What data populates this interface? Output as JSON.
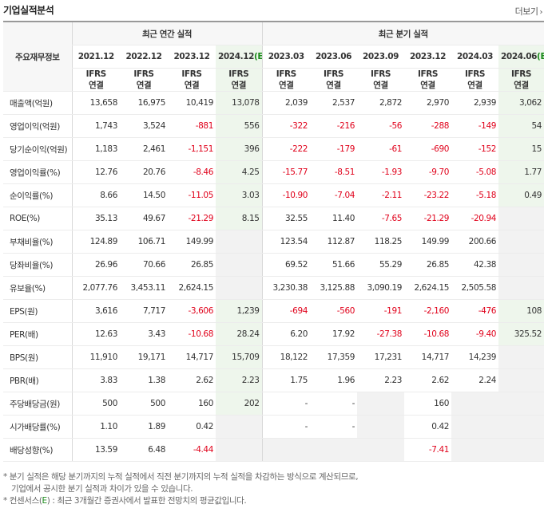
{
  "header": {
    "title": "기업실적분석",
    "more_label": "더보기"
  },
  "table": {
    "label_header": "주요재무정보",
    "annual_header": "최근 연간 실적",
    "quarter_header": "최근 분기 실적",
    "annual_years": [
      "2021.12",
      "2022.12",
      "2023.12",
      "2024.12"
    ],
    "annual_est_mark": "(E)",
    "quarter_periods": [
      "2023.03",
      "2023.06",
      "2023.09",
      "2023.12",
      "2024.03",
      "2024.06"
    ],
    "quarter_est_mark": "(E)",
    "ifrs_line1": "IFRS",
    "ifrs_line2": "연결",
    "rows": [
      {
        "label": "매출액(억원)",
        "values": [
          "13,658",
          "16,975",
          "10,419",
          "13,078",
          "2,039",
          "2,537",
          "2,872",
          "2,970",
          "2,939",
          "3,062"
        ]
      },
      {
        "label": "영업이익(억원)",
        "values": [
          "1,743",
          "3,524",
          "-881",
          "556",
          "-322",
          "-216",
          "-56",
          "-288",
          "-149",
          "54"
        ]
      },
      {
        "label": "당기순이익(억원)",
        "values": [
          "1,183",
          "2,461",
          "-1,151",
          "396",
          "-222",
          "-179",
          "-61",
          "-690",
          "-152",
          "15"
        ]
      },
      {
        "label": "영업이익률(%)",
        "values": [
          "12.76",
          "20.76",
          "-8.46",
          "4.25",
          "-15.77",
          "-8.51",
          "-1.93",
          "-9.70",
          "-5.08",
          "1.77"
        ]
      },
      {
        "label": "순이익률(%)",
        "values": [
          "8.66",
          "14.50",
          "-11.05",
          "3.03",
          "-10.90",
          "-7.04",
          "-2.11",
          "-23.22",
          "-5.18",
          "0.49"
        ]
      },
      {
        "label": "ROE(%)",
        "values": [
          "35.13",
          "49.67",
          "-21.29",
          "8.15",
          "32.55",
          "11.40",
          "-7.65",
          "-21.29",
          "-20.94",
          ""
        ]
      },
      {
        "label": "부채비율(%)",
        "values": [
          "124.89",
          "106.71",
          "149.99",
          "",
          "123.54",
          "112.87",
          "118.25",
          "149.99",
          "200.66",
          ""
        ]
      },
      {
        "label": "당좌비율(%)",
        "values": [
          "26.96",
          "70.66",
          "26.85",
          "",
          "69.52",
          "51.66",
          "55.29",
          "26.85",
          "42.38",
          ""
        ]
      },
      {
        "label": "유보율(%)",
        "values": [
          "2,077.76",
          "3,453.11",
          "2,624.15",
          "",
          "3,230.38",
          "3,125.88",
          "3,090.19",
          "2,624.15",
          "2,505.58",
          ""
        ]
      },
      {
        "label": "EPS(원)",
        "values": [
          "3,616",
          "7,717",
          "-3,606",
          "1,239",
          "-694",
          "-560",
          "-191",
          "-2,160",
          "-476",
          "108"
        ]
      },
      {
        "label": "PER(배)",
        "values": [
          "12.63",
          "3.43",
          "-10.68",
          "28.24",
          "6.20",
          "17.92",
          "-27.38",
          "-10.68",
          "-9.40",
          "325.52"
        ]
      },
      {
        "label": "BPS(원)",
        "values": [
          "11,910",
          "19,171",
          "14,717",
          "15,709",
          "18,122",
          "17,359",
          "17,231",
          "14,717",
          "14,239",
          ""
        ]
      },
      {
        "label": "PBR(배)",
        "values": [
          "3.83",
          "1.38",
          "2.62",
          "2.23",
          "1.75",
          "1.96",
          "2.23",
          "2.62",
          "2.24",
          ""
        ]
      },
      {
        "label": "주당배당금(원)",
        "values": [
          "500",
          "500",
          "160",
          "202",
          "-",
          "-",
          "",
          "160",
          "",
          ""
        ]
      },
      {
        "label": "시가배당률(%)",
        "values": [
          "1.10",
          "1.89",
          "0.42",
          "",
          "-",
          "-",
          "",
          "0.42",
          "",
          ""
        ]
      },
      {
        "label": "배당성향(%)",
        "values": [
          "13.59",
          "6.48",
          "-4.44",
          "",
          "",
          "",
          "",
          "-7.41",
          "",
          ""
        ]
      }
    ]
  },
  "notes": {
    "line1": "* 분기 실적은 해당 분기까지의 누적 실적에서 직전 분기까지의 누적 실적을 차감하는 방식으로 계산되므로,",
    "line2": "기업에서 공시한 분기 실적과 차이가 있을 수 있습니다.",
    "line3_prefix": "* 컨센서스(",
    "line3_e": "E",
    "line3_suffix": ") : 최근 3개월간 증권사에서 발표한 전망치의 평균값입니다."
  },
  "colors": {
    "negative": "#e0001a",
    "ifrs": "#e9740e",
    "estimate_bg": "#eef6ec",
    "estimate_mark": "#1a8a1a"
  }
}
